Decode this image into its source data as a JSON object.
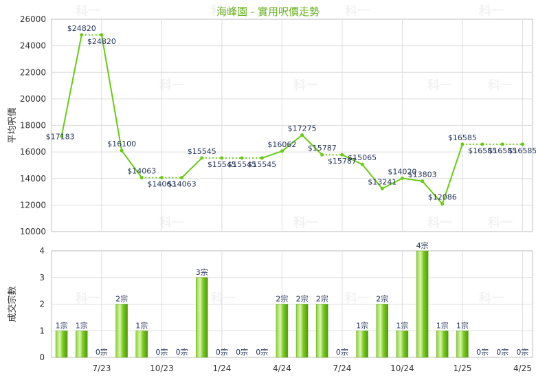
{
  "chart_data": [
    {
      "type": "line",
      "title": "海峰園 - 實用呎價走勢",
      "ylabel": "平均呎價",
      "ylim": [
        10000,
        26000
      ],
      "yticks": [
        10000,
        12000,
        14000,
        16000,
        18000,
        20000,
        22000,
        24000,
        26000
      ],
      "grid": true,
      "color": "#66cc11",
      "points": [
        {
          "x": 0,
          "y": 17183,
          "label": "$17183"
        },
        {
          "x": 1,
          "y": 24820,
          "label": "$24820"
        },
        {
          "x": 2,
          "y": 24820,
          "label": "$24820"
        },
        {
          "x": 3,
          "y": 16100,
          "label": "$16100"
        },
        {
          "x": 4,
          "y": 14063,
          "label": "$14063"
        },
        {
          "x": 5,
          "y": 14063,
          "label": "$14063"
        },
        {
          "x": 6,
          "y": 14063,
          "label": "$14063"
        },
        {
          "x": 7,
          "y": 15545,
          "label": "$15545"
        },
        {
          "x": 8,
          "y": 15545,
          "label": "$15545"
        },
        {
          "x": 9,
          "y": 15545,
          "label": "$15545"
        },
        {
          "x": 10,
          "y": 15545,
          "label": "$15545"
        },
        {
          "x": 11,
          "y": 16062,
          "label": "$16062"
        },
        {
          "x": 12,
          "y": 17275,
          "label": "$17275"
        },
        {
          "x": 13,
          "y": 15787,
          "label": "$15787"
        },
        {
          "x": 14,
          "y": 15787,
          "label": "$15787"
        },
        {
          "x": 15,
          "y": 15065,
          "label": "$15065"
        },
        {
          "x": 16,
          "y": 13241,
          "label": "$13241"
        },
        {
          "x": 17,
          "y": 14020,
          "label": "$14020"
        },
        {
          "x": 18,
          "y": 13803,
          "label": "$13803"
        },
        {
          "x": 19,
          "y": 12086,
          "label": "$12086"
        },
        {
          "x": 20,
          "y": 16585,
          "label": "$16585"
        },
        {
          "x": 21,
          "y": 16585,
          "label": "$16585"
        },
        {
          "x": 22,
          "y": 16585,
          "label": "$16585"
        },
        {
          "x": 23,
          "y": 16585,
          "label": "$16585"
        }
      ],
      "dotted_segments": [
        [
          1,
          2
        ],
        [
          4,
          6
        ],
        [
          7,
          10
        ],
        [
          13,
          14
        ],
        [
          20,
          23
        ]
      ]
    },
    {
      "type": "bar",
      "ylabel": "成交宗數",
      "ylim": [
        0,
        4
      ],
      "yticks": [
        0,
        1,
        2,
        3,
        4
      ],
      "grid": true,
      "color": "#66cc11",
      "values": [
        1,
        1,
        0,
        2,
        1,
        0,
        0,
        3,
        0,
        0,
        0,
        2,
        2,
        2,
        0,
        1,
        2,
        1,
        4,
        1,
        1,
        0,
        0,
        0
      ],
      "labels": [
        "1宗",
        "1宗",
        "0宗",
        "2宗",
        "1宗",
        "0宗",
        "0宗",
        "3宗",
        "0宗",
        "0宗",
        "0宗",
        "2宗",
        "2宗",
        "2宗",
        "0宗",
        "1宗",
        "2宗",
        "1宗",
        "4宗",
        "1宗",
        "1宗",
        "0宗",
        "0宗",
        "0宗"
      ],
      "x_ticks": [
        {
          "index": 2,
          "label": "7/23"
        },
        {
          "index": 5,
          "label": "10/23"
        },
        {
          "index": 8,
          "label": "1/24"
        },
        {
          "index": 11,
          "label": "4/24"
        },
        {
          "index": 14,
          "label": "7/24"
        },
        {
          "index": 17,
          "label": "10/24"
        },
        {
          "index": 20,
          "label": "1/25"
        },
        {
          "index": 23,
          "label": "4/25"
        }
      ]
    }
  ],
  "watermark": "科一"
}
